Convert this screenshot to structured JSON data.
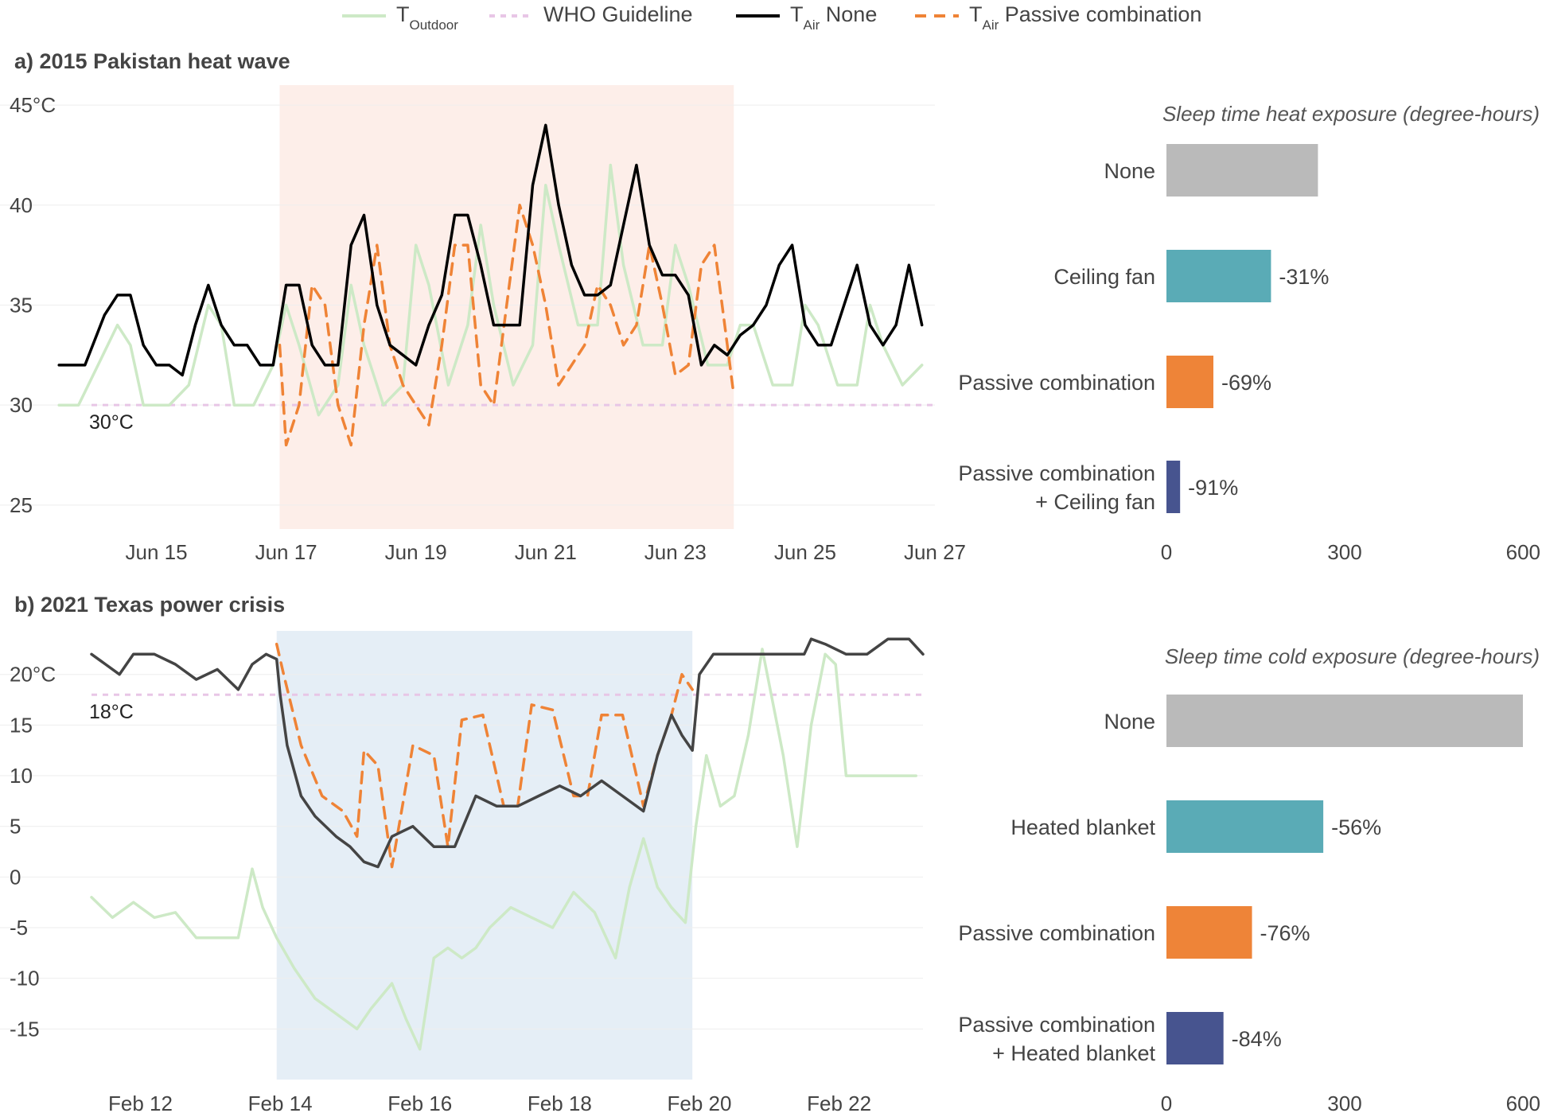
{
  "legend": [
    {
      "key": "outdoor",
      "main": "T",
      "sub": "Outdoor",
      "suffix": "",
      "color": "#cde9c6",
      "dash": ""
    },
    {
      "key": "who",
      "main": "WHO Guideline",
      "sub": "",
      "suffix": "",
      "color": "#e8c6e6",
      "dash": "7,7"
    },
    {
      "key": "none",
      "main": "T",
      "sub": "Air",
      "suffix": " None",
      "color": "#000000",
      "dash": ""
    },
    {
      "key": "passive",
      "main": "T",
      "sub": "Air",
      "suffix": " Passive combination",
      "color": "#ef8336",
      "dash": "14,10"
    }
  ],
  "colors": {
    "outdoor": "#cde9c6",
    "who": "#e8c6e6",
    "none_a": "#000000",
    "none_b": "#444444",
    "passive": "#ef8336",
    "heat_shade": "#fdeee9",
    "cold_shade": "#e5eef6",
    "bar_none": "#bababa",
    "bar_teal": "#5aabb6",
    "bar_orange": "#ee8438",
    "bar_navy": "#47548f",
    "grid": "#eeeeee"
  },
  "chart_data": [
    {
      "id": "a",
      "type": "line",
      "title": "a) 2015 Pakistan heat wave",
      "xlabel": "",
      "ylabel": "",
      "x_unit": "day",
      "xlim": [
        14.0,
        27.0
      ],
      "ylim": [
        23.8,
        46.0
      ],
      "x_ticks": [
        15,
        17,
        19,
        21,
        23,
        25,
        27
      ],
      "x_tick_labels": [
        "Jun 15",
        "Jun 17",
        "Jun 19",
        "Jun 21",
        "Jun 23",
        "Jun 25",
        "Jun 27"
      ],
      "y_ticks": [
        25,
        30,
        35,
        40,
        45
      ],
      "y_tick_labels": [
        "25",
        "30",
        "35",
        "40",
        "45°C"
      ],
      "guideline": {
        "value": 30,
        "label": "30°C"
      },
      "shaded_region": [
        16.9,
        23.9
      ],
      "series": [
        {
          "name": "T Outdoor",
          "x": [
            13.5,
            13.8,
            14.1,
            14.4,
            14.6,
            14.8,
            15.0,
            15.2,
            15.5,
            15.8,
            16.0,
            16.2,
            16.5,
            16.8,
            17.0,
            17.2,
            17.5,
            17.8,
            18.0,
            18.2,
            18.5,
            18.8,
            19.0,
            19.2,
            19.5,
            19.8,
            20.0,
            20.2,
            20.5,
            20.8,
            21.0,
            21.2,
            21.5,
            21.8,
            22.0,
            22.2,
            22.5,
            22.8,
            23.0,
            23.2,
            23.5,
            23.8,
            24.0,
            24.2,
            24.5,
            24.8,
            25.0,
            25.2,
            25.5,
            25.8,
            26.0,
            26.2,
            26.5,
            26.8
          ],
          "y": [
            30,
            30,
            32,
            34,
            33,
            30,
            30,
            30,
            31,
            35,
            34,
            30,
            30,
            32,
            35,
            33,
            29.5,
            31,
            36,
            33,
            30,
            31,
            38,
            36,
            31,
            34,
            39,
            35,
            31,
            33,
            41,
            38,
            34,
            34,
            42,
            37,
            33,
            33,
            38,
            36,
            32,
            32,
            34,
            34,
            31,
            31,
            35,
            34,
            31,
            31,
            35,
            33,
            31,
            32
          ]
        },
        {
          "name": "T Air None",
          "x": [
            13.5,
            13.9,
            14.2,
            14.4,
            14.6,
            14.8,
            15.0,
            15.2,
            15.4,
            15.6,
            15.8,
            16.0,
            16.2,
            16.4,
            16.6,
            16.8,
            17.0,
            17.2,
            17.4,
            17.6,
            17.8,
            18.0,
            18.2,
            18.4,
            18.6,
            18.8,
            19.0,
            19.2,
            19.4,
            19.6,
            19.8,
            20.0,
            20.2,
            20.4,
            20.6,
            20.8,
            21.0,
            21.2,
            21.4,
            21.6,
            21.8,
            22.0,
            22.2,
            22.4,
            22.6,
            22.8,
            23.0,
            23.2,
            23.4,
            23.6,
            23.8,
            24.0,
            24.2,
            24.4,
            24.6,
            24.8,
            25.0,
            25.2,
            25.4,
            25.6,
            25.8,
            26.0,
            26.2,
            26.4,
            26.6,
            26.8
          ],
          "y": [
            32,
            32,
            34.5,
            35.5,
            35.5,
            33,
            32,
            32,
            31.5,
            34,
            36,
            34,
            33,
            33,
            32,
            32,
            36,
            36,
            33,
            32,
            32,
            38,
            39.5,
            35,
            33,
            32.5,
            32,
            34,
            35.5,
            39.5,
            39.5,
            37,
            34,
            34,
            34,
            41,
            44,
            40,
            37,
            35.5,
            35.5,
            36,
            39,
            42,
            38,
            36.5,
            36.5,
            35.5,
            32,
            33,
            32.5,
            33.5,
            34,
            35,
            37,
            38,
            34,
            33,
            33,
            35,
            37,
            34,
            33,
            34,
            37,
            34
          ]
        },
        {
          "name": "T Air Passive combination",
          "x": [
            16.9,
            17.0,
            17.2,
            17.4,
            17.6,
            17.8,
            18.0,
            18.2,
            18.4,
            18.6,
            18.8,
            19.0,
            19.2,
            19.4,
            19.6,
            19.8,
            20.0,
            20.2,
            20.4,
            20.6,
            20.8,
            21.0,
            21.2,
            21.4,
            21.6,
            21.8,
            22.0,
            22.2,
            22.4,
            22.6,
            22.8,
            23.0,
            23.2,
            23.4,
            23.6,
            23.8,
            23.9
          ],
          "y": [
            33,
            28,
            30,
            36,
            35,
            30,
            28,
            34,
            38,
            33,
            31,
            30,
            29,
            33,
            38,
            38,
            31,
            30,
            35,
            40,
            38,
            35,
            31,
            32,
            33,
            36,
            35,
            33,
            34,
            38,
            35,
            31.5,
            32,
            37,
            38,
            33,
            30.5
          ]
        }
      ]
    },
    {
      "id": "b",
      "type": "line",
      "title": "b) 2021 Texas power crisis",
      "xlabel": "",
      "ylabel": "",
      "x_unit": "day",
      "xlim": [
        11.3,
        23.2
      ],
      "ylim": [
        -20.0,
        24.3
      ],
      "x_ticks": [
        12,
        14,
        16,
        18,
        20,
        22
      ],
      "x_tick_labels": [
        "Feb 12",
        "Feb 14",
        "Feb 16",
        "Feb 18",
        "Feb 20",
        "Feb 22"
      ],
      "y_ticks": [
        -15,
        -10,
        -5,
        0,
        5,
        10,
        15,
        20
      ],
      "y_tick_labels": [
        "-15",
        "-10",
        "-5",
        "0",
        "5",
        "10",
        "15",
        "20°C"
      ],
      "guideline": {
        "value": 18,
        "label": "18°C"
      },
      "shaded_region": [
        13.95,
        19.9
      ],
      "series": [
        {
          "name": "T Outdoor",
          "x": [
            11.3,
            11.6,
            11.9,
            12.2,
            12.5,
            12.8,
            13.1,
            13.4,
            13.6,
            13.75,
            13.95,
            14.2,
            14.5,
            14.8,
            15.1,
            15.3,
            15.6,
            15.8,
            16.0,
            16.2,
            16.4,
            16.6,
            16.8,
            17.0,
            17.3,
            17.6,
            17.9,
            18.2,
            18.5,
            18.8,
            19.0,
            19.2,
            19.4,
            19.6,
            19.8,
            19.95,
            20.1,
            20.3,
            20.5,
            20.7,
            20.9,
            21.2,
            21.4,
            21.6,
            21.8,
            21.95,
            22.1,
            22.3,
            22.5,
            22.7,
            22.9,
            23.1
          ],
          "y": [
            -2,
            -4,
            -2.5,
            -4,
            -3.5,
            -6,
            -6,
            -6,
            0.8,
            -3,
            -6,
            -9,
            -12,
            -13.5,
            -15,
            -13,
            -10.5,
            -14,
            -17,
            -8,
            -7,
            -8,
            -7,
            -5,
            -3,
            -4,
            -5,
            -1.5,
            -3.5,
            -8,
            -1,
            3.8,
            -1,
            -3,
            -4.5,
            5,
            12,
            7,
            8,
            14,
            22.5,
            12,
            3,
            15,
            22,
            21,
            10,
            10,
            10,
            10,
            10,
            10
          ]
        },
        {
          "name": "T Air None",
          "x": [
            11.3,
            11.5,
            11.7,
            11.9,
            12.2,
            12.5,
            12.8,
            13.1,
            13.4,
            13.6,
            13.8,
            13.95,
            14.0,
            14.1,
            14.3,
            14.5,
            14.8,
            15.0,
            15.2,
            15.4,
            15.6,
            15.9,
            16.2,
            16.5,
            16.8,
            17.1,
            17.4,
            17.7,
            18.0,
            18.3,
            18.6,
            18.9,
            19.2,
            19.4,
            19.6,
            19.75,
            19.9,
            20.0,
            20.2,
            20.5,
            20.8,
            21.2,
            21.5,
            21.6,
            21.8,
            22.1,
            22.4,
            22.7,
            23.0,
            23.2
          ],
          "y": [
            22,
            21,
            20,
            22,
            22,
            21,
            19.5,
            20.5,
            18.5,
            21,
            22,
            21.5,
            18,
            13,
            8,
            6,
            4,
            3,
            1.5,
            1,
            4,
            5,
            3,
            3,
            8,
            7,
            7,
            8,
            9,
            8,
            9.5,
            8,
            6.5,
            12,
            16,
            14,
            12.5,
            20,
            22,
            22,
            22,
            22,
            22,
            23.5,
            23,
            22,
            22,
            23.5,
            23.5,
            22
          ]
        },
        {
          "name": "T Air Passive combination",
          "x": [
            13.95,
            14.05,
            14.3,
            14.6,
            14.9,
            15.1,
            15.2,
            15.4,
            15.6,
            15.9,
            16.2,
            16.4,
            16.6,
            16.9,
            17.2,
            17.4,
            17.6,
            17.9,
            18.2,
            18.4,
            18.6,
            18.9,
            19.2,
            19.4,
            19.6,
            19.75,
            19.9
          ],
          "y": [
            23,
            20,
            13,
            8,
            6.5,
            4,
            12.5,
            11,
            1,
            13,
            12,
            3,
            15.5,
            16,
            7,
            7,
            17,
            16.5,
            8,
            8,
            16,
            16,
            7,
            12,
            16,
            20,
            18.5
          ]
        }
      ]
    }
  ],
  "bar_charts": [
    {
      "id": "a-bars",
      "type": "bar",
      "title": "Sleep time heat exposure (degree-hours)",
      "categories": [
        "None",
        "Ceiling fan",
        "Passive combination",
        "Passive combination\n+ Ceiling fan"
      ],
      "values": [
        255,
        176,
        79,
        23
      ],
      "labels": [
        "",
        "-31%",
        "-69%",
        "-91%"
      ],
      "colors": [
        "#bababa",
        "#5aabb6",
        "#ee8438",
        "#47548f"
      ],
      "xlim": [
        0,
        600
      ],
      "x_ticks": [
        0,
        300,
        600
      ],
      "x_tick_labels": [
        "0",
        "300",
        "600"
      ]
    },
    {
      "id": "b-bars",
      "type": "bar",
      "title": "Sleep time cold exposure (degree-hours)",
      "categories": [
        "None",
        "Heated blanket",
        "Passive combination",
        "Passive combination\n+ Heated blanket"
      ],
      "values": [
        600,
        264,
        144,
        96
      ],
      "labels": [
        "",
        "-56%",
        "-76%",
        "-84%"
      ],
      "colors": [
        "#bababa",
        "#5aabb6",
        "#ee8438",
        "#47548f"
      ],
      "xlim": [
        0,
        600
      ],
      "x_ticks": [
        0,
        300,
        600
      ],
      "x_tick_labels": [
        "0",
        "300",
        "600"
      ]
    }
  ]
}
